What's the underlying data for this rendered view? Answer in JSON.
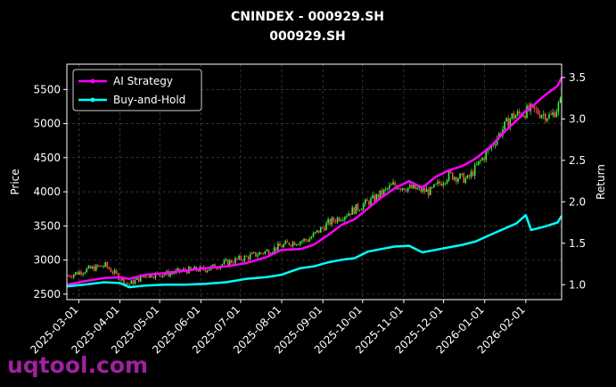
{
  "chart_data": {
    "type": "line",
    "title": "CNINDEX - 000929.SH",
    "subtitle": "000929.SH",
    "xlabel": "",
    "ylabel": "Price",
    "y2label": "Return",
    "x_start": "2025-02-20",
    "x_end": "2026-02-28",
    "xticks": [
      "2025-03-01",
      "2025-04-01",
      "2025-05-01",
      "2025-06-01",
      "2025-07-01",
      "2025-08-01",
      "2025-09-01",
      "2025-10-01",
      "2025-11-01",
      "2025-12-01",
      "2026-01-01",
      "2026-02-01"
    ],
    "ylim": [
      2420,
      5870
    ],
    "yticks": [
      2500,
      3000,
      3500,
      4000,
      4500,
      5000,
      5500
    ],
    "y2lim": [
      0.82,
      3.66
    ],
    "y2ticks": [
      1.0,
      1.5,
      2.0,
      2.5,
      3.0,
      3.5
    ],
    "grid": true,
    "legend_position": "top-left",
    "candles": {
      "up_color": "#3ef03e",
      "down_color": "#ff4a4a",
      "x": [
        "2025-02-21",
        "2025-03-07",
        "2025-03-21",
        "2025-04-07",
        "2025-04-21",
        "2025-05-07",
        "2025-05-21",
        "2025-06-06",
        "2025-06-20",
        "2025-07-07",
        "2025-07-21",
        "2025-08-07",
        "2025-08-21",
        "2025-09-05",
        "2025-09-19",
        "2025-10-10",
        "2025-10-24",
        "2025-11-07",
        "2025-11-21",
        "2025-12-05",
        "2025-12-19",
        "2026-01-07",
        "2026-01-21",
        "2026-02-05",
        "2026-02-20",
        "2026-02-27"
      ],
      "close": [
        2770,
        2860,
        2920,
        2640,
        2780,
        2800,
        2850,
        2870,
        2960,
        3050,
        3130,
        3250,
        3300,
        3540,
        3680,
        3900,
        4100,
        4050,
        4000,
        4250,
        4180,
        4700,
        5100,
        5200,
        5100,
        5300
      ]
    },
    "series": [
      {
        "name": "AI Strategy",
        "color": "#ff00ff",
        "x": [
          "2025-02-20",
          "2025-03-05",
          "2025-03-20",
          "2025-04-01",
          "2025-04-08",
          "2025-04-20",
          "2025-05-05",
          "2025-05-20",
          "2025-06-05",
          "2025-06-20",
          "2025-07-05",
          "2025-07-20",
          "2025-08-01",
          "2025-08-15",
          "2025-08-25",
          "2025-09-05",
          "2025-09-15",
          "2025-09-25",
          "2025-10-05",
          "2025-10-15",
          "2025-10-25",
          "2025-11-05",
          "2025-11-15",
          "2025-11-25",
          "2025-12-05",
          "2025-12-15",
          "2025-12-25",
          "2026-01-05",
          "2026-01-15",
          "2026-01-25",
          "2026-02-01",
          "2026-02-05",
          "2026-02-15",
          "2026-02-25",
          "2026-02-28"
        ],
        "values": [
          1.0,
          1.04,
          1.08,
          1.09,
          1.07,
          1.12,
          1.14,
          1.17,
          1.2,
          1.22,
          1.26,
          1.33,
          1.42,
          1.43,
          1.48,
          1.6,
          1.72,
          1.79,
          1.92,
          2.05,
          2.16,
          2.25,
          2.17,
          2.3,
          2.38,
          2.43,
          2.52,
          2.66,
          2.83,
          2.98,
          3.1,
          3.14,
          3.28,
          3.4,
          3.5
        ]
      },
      {
        "name": "Buy-and-Hold",
        "color": "#00ffff",
        "x": [
          "2025-02-20",
          "2025-03-05",
          "2025-03-20",
          "2025-04-01",
          "2025-04-08",
          "2025-04-20",
          "2025-05-05",
          "2025-05-20",
          "2025-06-05",
          "2025-06-20",
          "2025-07-05",
          "2025-07-20",
          "2025-08-01",
          "2025-08-15",
          "2025-08-25",
          "2025-09-05",
          "2025-09-15",
          "2025-09-25",
          "2025-10-05",
          "2025-10-15",
          "2025-10-25",
          "2025-11-05",
          "2025-11-15",
          "2025-11-25",
          "2025-12-05",
          "2025-12-15",
          "2025-12-25",
          "2026-01-05",
          "2026-01-15",
          "2026-01-25",
          "2026-02-01",
          "2026-02-05",
          "2026-02-15",
          "2026-02-25",
          "2026-02-28"
        ],
        "values": [
          0.98,
          1.0,
          1.03,
          1.02,
          0.97,
          0.99,
          1.0,
          1.0,
          1.01,
          1.03,
          1.07,
          1.09,
          1.12,
          1.2,
          1.22,
          1.27,
          1.3,
          1.32,
          1.4,
          1.43,
          1.46,
          1.47,
          1.39,
          1.42,
          1.45,
          1.48,
          1.52,
          1.6,
          1.67,
          1.74,
          1.84,
          1.66,
          1.7,
          1.75,
          1.83
        ]
      }
    ]
  },
  "watermark": "uqtool.com"
}
